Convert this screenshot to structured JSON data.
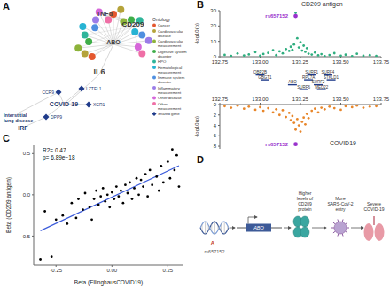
{
  "panel_labels": [
    "A",
    "B",
    "C",
    "D"
  ],
  "network": {
    "legend_title": "Ontology",
    "ontology": [
      {
        "label": "Cancer",
        "color": "#e4572e"
      },
      {
        "label": "Cardiovascular disease",
        "color": "#b5a33a"
      },
      {
        "label": "Cardiovascular measurement",
        "color": "#8db33a"
      },
      {
        "label": "Digestive system disorder",
        "color": "#3fae49"
      },
      {
        "label": "HPO",
        "color": "#2fb59a"
      },
      {
        "label": "Hematological measurement",
        "color": "#27b3d3"
      },
      {
        "label": "Immune system disorder",
        "color": "#4f8fe0"
      },
      {
        "label": "Inflammatory measurement",
        "color": "#9b7ce8"
      },
      {
        "label": "Other disease",
        "color": "#d667d9"
      },
      {
        "label": "Other measurement",
        "color": "#ef6fa6"
      }
    ],
    "shared_gene": {
      "label": "Shared gene",
      "color": "#1f3b8a"
    },
    "hubs": [
      "ABO",
      "CD209",
      "TNFα",
      "IL6",
      "COVID-19",
      "Interstitial lung disease",
      "IRF"
    ],
    "genes": [
      "LZTFL1",
      "CCR9",
      "XCR1",
      "DPP9"
    ]
  },
  "chart_data": [
    {
      "type": "scatter",
      "title": "CD209 antigen",
      "ylabel": "-log10(p)",
      "color": "#2fae7f",
      "x": [
        132.78,
        132.82,
        132.86,
        132.9,
        132.93,
        132.97,
        133.0,
        133.02,
        133.05,
        133.08,
        133.1,
        133.12,
        133.14,
        133.16,
        133.18,
        133.19,
        133.2,
        133.21,
        133.22,
        133.23,
        133.24,
        133.25,
        133.26,
        133.27,
        133.28,
        133.29,
        133.3,
        133.32,
        133.34,
        133.36,
        133.38,
        133.4,
        133.43,
        133.46,
        133.5,
        133.53,
        133.57,
        133.6,
        133.64,
        133.68,
        133.72
      ],
      "values": [
        1.2,
        0.5,
        2.1,
        0.8,
        1.5,
        3.0,
        0.6,
        1.8,
        2.5,
        4.2,
        1.0,
        3.5,
        2.2,
        5.0,
        3.8,
        6.5,
        4.5,
        8.0,
        28.5,
        12.0,
        6.0,
        9.5,
        4.0,
        7.2,
        3.2,
        5.5,
        2.0,
        1.4,
        2.8,
        0.9,
        1.7,
        0.4,
        1.1,
        2.3,
        0.7,
        1.3,
        0.3,
        1.9,
        0.6,
        1.0,
        0.5
      ],
      "highlight": {
        "label": "rs657152",
        "x": 133.22,
        "y": 26.5,
        "color": "#9932cc"
      },
      "xlim": [
        132.75,
        133.75
      ],
      "xticks": [
        132.75,
        {
          "value": 133,
          "label": "133.00"
        },
        133.25,
        {
          "value": 133.5,
          "label": "133.50"
        },
        133.75
      ],
      "ylim": [
        0,
        30
      ],
      "yticks": [
        0,
        10,
        20,
        30
      ]
    },
    {
      "type": "scatter",
      "title": "COVID19",
      "ylabel": "-log10(p)",
      "color": "#e8862a",
      "x": [
        132.78,
        132.82,
        132.86,
        132.9,
        132.93,
        132.97,
        133.0,
        133.02,
        133.05,
        133.08,
        133.1,
        133.12,
        133.14,
        133.16,
        133.18,
        133.19,
        133.2,
        133.21,
        133.22,
        133.23,
        133.24,
        133.25,
        133.26,
        133.27,
        133.28,
        133.29,
        133.3,
        133.32,
        133.34,
        133.36,
        133.38,
        133.4,
        133.43,
        133.46,
        133.5,
        133.53,
        133.57,
        133.6,
        133.64,
        133.68,
        133.72
      ],
      "values": [
        0.3,
        0.6,
        0.2,
        0.8,
        0.4,
        1.0,
        0.5,
        1.2,
        0.7,
        1.5,
        0.9,
        2.0,
        1.1,
        2.4,
        1.6,
        3.0,
        2.2,
        3.5,
        4.8,
        2.8,
        4.0,
        5.2,
        3.3,
        2.5,
        3.8,
        1.8,
        2.6,
        1.2,
        0.8,
        1.5,
        0.6,
        0.9,
        0.4,
        0.7,
        1.0,
        0.3,
        0.5,
        0.2,
        0.6,
        0.4,
        0.3
      ],
      "highlight": {
        "label": "rs657152",
        "x": 133.22,
        "y": 7.6,
        "color": "#9932cc"
      },
      "xlim": [
        132.75,
        133.75
      ],
      "xticks": [
        132.75,
        {
          "value": 133,
          "label": "133.00"
        },
        133.25,
        {
          "value": 133.5,
          "label": "133.50"
        },
        133.75
      ],
      "ylim": [
        8.5,
        0
      ],
      "yticks": [
        0,
        2,
        4,
        6,
        8
      ]
    },
    {
      "type": "scatter",
      "xlabel": "Beta (EllinghausCOVID19)",
      "ylabel": "Beta (CD209 antigen)",
      "annotations": [
        "R2= 0.47",
        "p= 6.89e−18"
      ],
      "color": "#000000",
      "x": [
        -0.32,
        -0.3,
        -0.27,
        -0.25,
        -0.22,
        -0.2,
        -0.18,
        -0.16,
        -0.15,
        -0.13,
        -0.12,
        -0.1,
        -0.09,
        -0.08,
        -0.07,
        -0.06,
        -0.05,
        -0.04,
        -0.03,
        -0.02,
        -0.01,
        0,
        0.01,
        0.02,
        0.03,
        0.04,
        0.05,
        0.06,
        0.07,
        0.08,
        0.09,
        0.1,
        0.11,
        0.12,
        0.13,
        0.14,
        0.15,
        0.16,
        0.17,
        0.18,
        0.2,
        0.21,
        0.22,
        0.23,
        0.25,
        0.26,
        0.27,
        0.28,
        0.29,
        0.3
      ],
      "values": [
        -0.78,
        -0.2,
        -0.75,
        -0.3,
        -0.25,
        -0.35,
        -0.1,
        -0.28,
        -0.05,
        -0.18,
        0.02,
        -0.15,
        -0.3,
        -0.05,
        0.05,
        -0.12,
        -0.02,
        0.08,
        -0.08,
        0,
        -0.15,
        0.03,
        -0.05,
        0.1,
        -0.02,
        0.05,
        -0.1,
        0.12,
        0.02,
        0.15,
        -0.05,
        0.08,
        0.2,
        0,
        0.18,
        0.1,
        0.25,
        -0.02,
        0.3,
        0.12,
        0.22,
        0.05,
        0.35,
        0.15,
        0.4,
        0.2,
        0.55,
        0.3,
        0.48,
        0.1
      ],
      "xlim": [
        -0.35,
        0.32
      ],
      "xticks": [
        -0.25,
        {
          "value": 0,
          "label": "0.00"
        },
        0.25
      ],
      "ylim": [
        -0.85,
        0.6
      ],
      "yticks": [
        -0.5,
        {
          "value": 0,
          "label": "0.0"
        },
        0.5
      ]
    }
  ],
  "gene_track": [
    {
      "name": "OBP2B",
      "x": 133.0
    },
    {
      "name": "GBGT1",
      "x": 133.03
    },
    {
      "name": "ABO",
      "x": 133.2
    },
    {
      "name": "SURF6",
      "x": 133.27
    },
    {
      "name": "SURF1",
      "x": 133.32
    },
    {
      "name": "RPL7A",
      "x": 133.3
    },
    {
      "name": "SURF2",
      "x": 133.36
    },
    {
      "name": "MED22",
      "x": 133.38
    },
    {
      "name": "SURF4",
      "x": 133.42
    },
    {
      "name": "STKLD1",
      "x": 133.44
    }
  ],
  "pathway": {
    "snp": "rs657152",
    "allele": "A",
    "gene": "ABO",
    "steps": [
      "Higher levels of CD209 protein",
      "More SARS-CoV-2 entry",
      "Severe COVID-19"
    ]
  }
}
